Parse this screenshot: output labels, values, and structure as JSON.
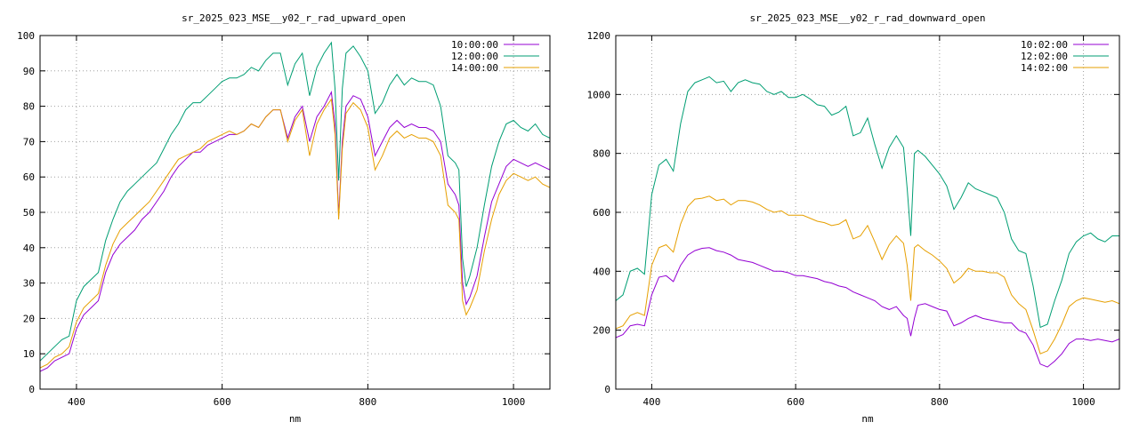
{
  "chart_data": [
    {
      "type": "line",
      "title": "sr_2025_023_MSE__y02_r_rad_upward_open",
      "xlabel": "nm",
      "ylabel": "",
      "xlim": [
        350,
        1050
      ],
      "ylim": [
        0,
        100
      ],
      "xticks": [
        400,
        600,
        800,
        1000
      ],
      "yticks": [
        0,
        10,
        20,
        30,
        40,
        50,
        60,
        70,
        80,
        90,
        100
      ],
      "grid": true,
      "legend_position": "top-right",
      "series": [
        {
          "name": "10:00:00",
          "color": "#9400d3",
          "x": [
            350,
            360,
            370,
            380,
            390,
            400,
            410,
            420,
            430,
            440,
            450,
            460,
            470,
            480,
            490,
            500,
            510,
            520,
            530,
            540,
            550,
            560,
            570,
            580,
            590,
            600,
            610,
            620,
            630,
            640,
            650,
            660,
            670,
            680,
            690,
            700,
            710,
            720,
            730,
            740,
            750,
            755,
            760,
            765,
            770,
            780,
            790,
            800,
            810,
            820,
            830,
            840,
            850,
            860,
            870,
            880,
            890,
            900,
            910,
            920,
            925,
            930,
            935,
            940,
            950,
            960,
            970,
            980,
            990,
            1000,
            1010,
            1020,
            1030,
            1040,
            1050
          ],
          "values": [
            5,
            6,
            8,
            9,
            10,
            17,
            21,
            23,
            25,
            33,
            38,
            41,
            43,
            45,
            48,
            50,
            53,
            56,
            60,
            63,
            65,
            67,
            67,
            69,
            70,
            71,
            72,
            72,
            73,
            75,
            74,
            77,
            79,
            79,
            71,
            77,
            80,
            70,
            77,
            80,
            84,
            75,
            49,
            70,
            80,
            83,
            82,
            77,
            66,
            70,
            74,
            76,
            74,
            75,
            74,
            74,
            73,
            70,
            58,
            55,
            52,
            30,
            24,
            26,
            32,
            43,
            53,
            58,
            63,
            65,
            64,
            63,
            64,
            63,
            62
          ]
        },
        {
          "name": "12:00:00",
          "color": "#009e73",
          "x": [
            350,
            360,
            370,
            380,
            390,
            400,
            410,
            420,
            430,
            440,
            450,
            460,
            470,
            480,
            490,
            500,
            510,
            520,
            530,
            540,
            550,
            560,
            570,
            580,
            590,
            600,
            610,
            620,
            630,
            640,
            650,
            660,
            670,
            680,
            690,
            700,
            710,
            720,
            730,
            740,
            750,
            755,
            760,
            765,
            770,
            780,
            790,
            800,
            810,
            820,
            830,
            840,
            850,
            860,
            870,
            880,
            890,
            900,
            910,
            920,
            925,
            930,
            935,
            940,
            950,
            960,
            970,
            980,
            990,
            1000,
            1010,
            1020,
            1030,
            1040,
            1050
          ],
          "values": [
            8,
            10,
            12,
            14,
            15,
            25,
            29,
            31,
            33,
            42,
            48,
            53,
            56,
            58,
            60,
            62,
            64,
            68,
            72,
            75,
            79,
            81,
            81,
            83,
            85,
            87,
            88,
            88,
            89,
            91,
            90,
            93,
            95,
            95,
            86,
            92,
            95,
            83,
            91,
            95,
            98,
            85,
            59,
            85,
            95,
            97,
            94,
            90,
            78,
            81,
            86,
            89,
            86,
            88,
            87,
            87,
            86,
            80,
            66,
            64,
            62,
            37,
            29,
            32,
            40,
            52,
            63,
            70,
            75,
            76,
            74,
            73,
            75,
            72,
            71
          ]
        },
        {
          "name": "14:00:00",
          "color": "#e69f00",
          "x": [
            350,
            360,
            370,
            380,
            390,
            400,
            410,
            420,
            430,
            440,
            450,
            460,
            470,
            480,
            490,
            500,
            510,
            520,
            530,
            540,
            550,
            560,
            570,
            580,
            590,
            600,
            610,
            620,
            630,
            640,
            650,
            660,
            670,
            680,
            690,
            700,
            710,
            720,
            730,
            740,
            750,
            755,
            760,
            765,
            770,
            780,
            790,
            800,
            810,
            820,
            830,
            840,
            850,
            860,
            870,
            880,
            890,
            900,
            910,
            920,
            925,
            930,
            935,
            940,
            950,
            960,
            970,
            980,
            990,
            1000,
            1010,
            1020,
            1030,
            1040,
            1050
          ],
          "values": [
            6,
            7,
            9,
            10,
            12,
            19,
            23,
            25,
            27,
            35,
            41,
            45,
            47,
            49,
            51,
            53,
            56,
            59,
            62,
            65,
            66,
            67,
            68,
            70,
            71,
            72,
            73,
            72,
            73,
            75,
            74,
            77,
            79,
            79,
            70,
            76,
            79,
            66,
            75,
            79,
            82,
            72,
            48,
            68,
            78,
            81,
            79,
            74,
            62,
            66,
            71,
            73,
            71,
            72,
            71,
            71,
            70,
            66,
            52,
            50,
            48,
            25,
            21,
            23,
            28,
            39,
            48,
            55,
            59,
            61,
            60,
            59,
            60,
            58,
            57
          ]
        }
      ]
    },
    {
      "type": "line",
      "title": "sr_2025_023_MSE__y02_r_rad_downward_open",
      "xlabel": "nm",
      "ylabel": "",
      "xlim": [
        350,
        1050
      ],
      "ylim": [
        0,
        1200
      ],
      "xticks": [
        400,
        600,
        800,
        1000
      ],
      "yticks": [
        0,
        200,
        400,
        600,
        800,
        1000,
        1200
      ],
      "grid": true,
      "legend_position": "top-right",
      "series": [
        {
          "name": "10:02:00",
          "color": "#9400d3",
          "x": [
            350,
            360,
            370,
            380,
            390,
            400,
            410,
            420,
            430,
            440,
            450,
            460,
            470,
            480,
            490,
            500,
            510,
            520,
            530,
            540,
            550,
            560,
            570,
            580,
            590,
            600,
            610,
            620,
            630,
            640,
            650,
            660,
            670,
            680,
            690,
            700,
            710,
            720,
            730,
            740,
            750,
            755,
            760,
            765,
            770,
            780,
            790,
            800,
            810,
            820,
            830,
            840,
            850,
            860,
            870,
            880,
            890,
            900,
            910,
            920,
            930,
            940,
            950,
            960,
            970,
            980,
            990,
            1000,
            1010,
            1020,
            1030,
            1040,
            1050
          ],
          "values": [
            175,
            185,
            215,
            220,
            215,
            320,
            380,
            385,
            365,
            420,
            455,
            470,
            478,
            480,
            470,
            465,
            455,
            440,
            435,
            430,
            420,
            410,
            400,
            400,
            395,
            385,
            385,
            380,
            375,
            365,
            360,
            350,
            345,
            330,
            320,
            310,
            300,
            280,
            270,
            280,
            250,
            240,
            180,
            240,
            285,
            290,
            280,
            270,
            265,
            215,
            225,
            240,
            250,
            240,
            235,
            230,
            225,
            225,
            200,
            190,
            150,
            85,
            75,
            95,
            120,
            155,
            170,
            170,
            165,
            170,
            165,
            160,
            170
          ]
        },
        {
          "name": "12:02:00",
          "color": "#009e73",
          "x": [
            350,
            360,
            370,
            380,
            390,
            400,
            410,
            420,
            430,
            440,
            450,
            460,
            470,
            480,
            490,
            500,
            510,
            520,
            530,
            540,
            550,
            560,
            570,
            580,
            590,
            600,
            610,
            620,
            630,
            640,
            650,
            660,
            670,
            680,
            690,
            700,
            710,
            720,
            730,
            740,
            750,
            755,
            760,
            765,
            770,
            780,
            790,
            800,
            810,
            820,
            830,
            840,
            850,
            860,
            870,
            880,
            890,
            900,
            910,
            920,
            930,
            940,
            950,
            960,
            970,
            980,
            990,
            1000,
            1010,
            1020,
            1030,
            1040,
            1050
          ],
          "values": [
            300,
            320,
            400,
            410,
            390,
            660,
            760,
            780,
            740,
            900,
            1010,
            1040,
            1050,
            1060,
            1040,
            1045,
            1010,
            1040,
            1050,
            1040,
            1035,
            1010,
            1000,
            1010,
            990,
            990,
            1000,
            985,
            965,
            960,
            930,
            940,
            960,
            860,
            870,
            920,
            830,
            750,
            820,
            860,
            820,
            680,
            520,
            800,
            810,
            790,
            760,
            730,
            690,
            610,
            650,
            700,
            680,
            670,
            660,
            650,
            600,
            510,
            470,
            460,
            350,
            210,
            220,
            300,
            370,
            460,
            500,
            520,
            530,
            510,
            500,
            520,
            520
          ]
        },
        {
          "name": "14:02:00",
          "color": "#e69f00",
          "x": [
            350,
            360,
            370,
            380,
            390,
            400,
            410,
            420,
            430,
            440,
            450,
            460,
            470,
            480,
            490,
            500,
            510,
            520,
            530,
            540,
            550,
            560,
            570,
            580,
            590,
            600,
            610,
            620,
            630,
            640,
            650,
            660,
            670,
            680,
            690,
            700,
            710,
            720,
            730,
            740,
            750,
            755,
            760,
            765,
            770,
            780,
            790,
            800,
            810,
            820,
            830,
            840,
            850,
            860,
            870,
            880,
            890,
            900,
            910,
            920,
            930,
            940,
            950,
            960,
            970,
            980,
            990,
            1000,
            1010,
            1020,
            1030,
            1040,
            1050
          ],
          "values": [
            205,
            215,
            250,
            260,
            250,
            420,
            480,
            490,
            465,
            560,
            620,
            645,
            648,
            655,
            640,
            645,
            625,
            640,
            640,
            635,
            625,
            610,
            600,
            605,
            590,
            590,
            590,
            580,
            570,
            565,
            555,
            560,
            575,
            510,
            520,
            555,
            500,
            440,
            490,
            520,
            495,
            420,
            300,
            480,
            490,
            470,
            455,
            435,
            410,
            360,
            380,
            410,
            400,
            400,
            395,
            395,
            380,
            320,
            290,
            270,
            200,
            120,
            130,
            170,
            220,
            280,
            300,
            310,
            305,
            300,
            295,
            300,
            290
          ]
        }
      ]
    }
  ]
}
